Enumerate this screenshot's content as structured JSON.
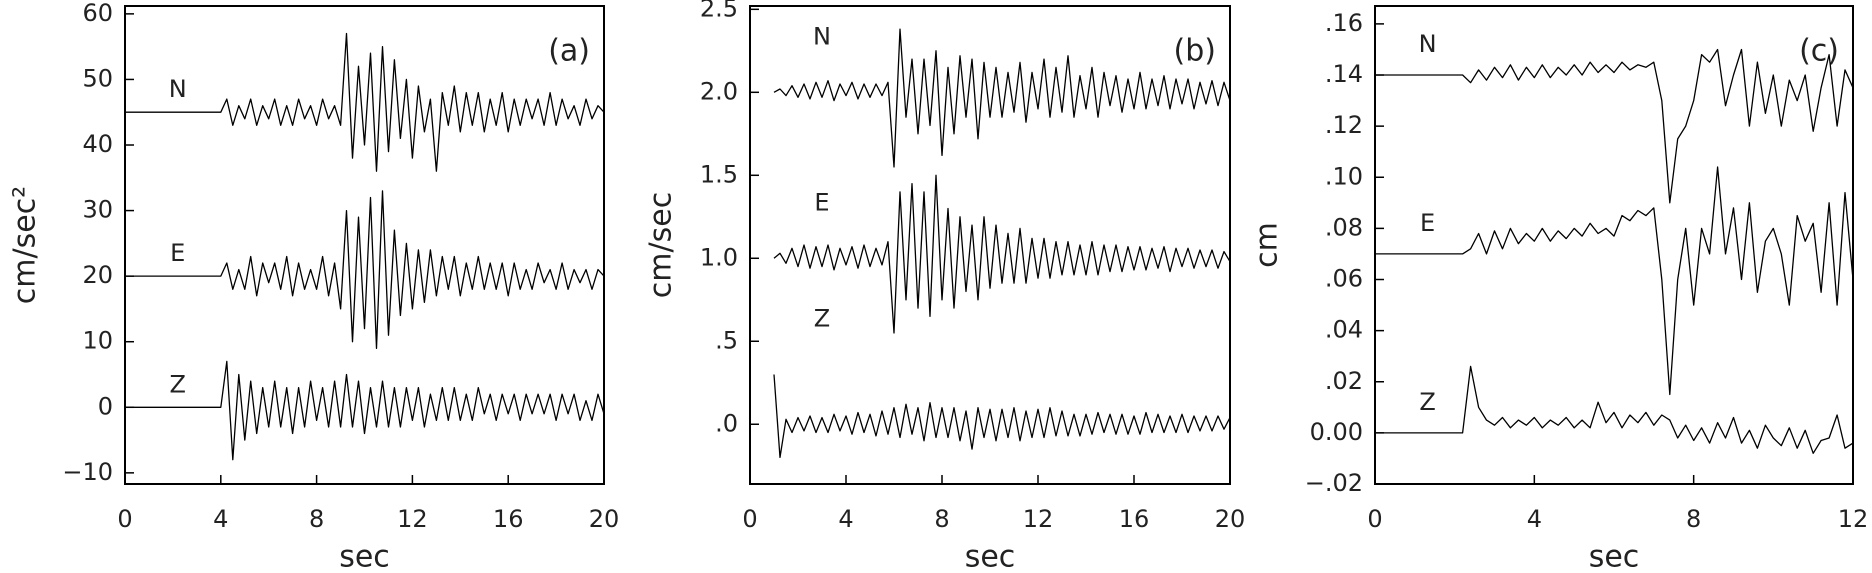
{
  "chart_data": [
    {
      "type": "line",
      "panel_label": "(a)",
      "y_label": "cm/sec²",
      "x_label": "sec",
      "xlim": [
        0,
        20
      ],
      "xticks": [
        0,
        4,
        8,
        12,
        16,
        20
      ],
      "ylim": [
        -11.7,
        61.2
      ],
      "yticks": [
        {
          "value": -10,
          "label": "−10"
        },
        0,
        10,
        20,
        30,
        40,
        50,
        60
      ],
      "x": [
        0,
        4,
        4.25,
        4.5,
        4.75,
        5,
        5.25,
        5.5,
        5.75,
        6,
        6.25,
        6.5,
        6.75,
        7,
        7.25,
        7.5,
        7.75,
        8,
        8.25,
        8.5,
        8.75,
        9,
        9.25,
        9.5,
        9.75,
        10,
        10.25,
        10.5,
        10.75,
        11,
        11.25,
        11.5,
        11.75,
        12,
        12.25,
        12.5,
        12.75,
        13,
        13.25,
        13.5,
        13.75,
        14,
        14.25,
        14.5,
        14.75,
        15,
        15.25,
        15.5,
        15.75,
        16,
        16.25,
        16.5,
        16.75,
        17,
        17.25,
        17.5,
        17.75,
        18,
        18.25,
        18.5,
        18.75,
        19,
        19.25,
        19.5,
        19.75,
        20
      ],
      "series": [
        {
          "name": "N",
          "color": "#000000",
          "values": [
            45,
            45,
            47,
            43,
            46,
            44,
            47,
            43,
            46,
            44,
            47,
            43,
            46,
            43,
            47,
            44,
            46,
            43,
            47,
            44,
            46,
            43,
            57,
            38,
            52,
            40,
            54,
            36,
            55,
            39,
            53,
            41,
            50,
            38,
            49,
            42,
            47,
            36,
            48,
            43,
            49,
            42,
            48,
            43,
            48,
            42,
            47,
            43,
            48,
            42,
            47,
            43,
            47,
            44,
            47,
            43,
            48,
            43,
            47,
            44,
            46,
            43,
            47,
            44,
            46,
            45
          ]
        },
        {
          "name": "E",
          "color": "#000000",
          "values": [
            20,
            20,
            22,
            18,
            21,
            18,
            23,
            17,
            22,
            19,
            22,
            18,
            23,
            17,
            22,
            18,
            21,
            18,
            23,
            17,
            22,
            15,
            30,
            10,
            29,
            12,
            32,
            9,
            33,
            11,
            27,
            14,
            25,
            15,
            24,
            16,
            24,
            17,
            23,
            18,
            23,
            17,
            22,
            18,
            23,
            18,
            22,
            18,
            22,
            17,
            22,
            18,
            21,
            18,
            22,
            19,
            21,
            18,
            22,
            18,
            21,
            19,
            21,
            18,
            21,
            20
          ]
        },
        {
          "name": "Z",
          "color": "#000000",
          "values": [
            0,
            0,
            7,
            -8,
            5,
            -5,
            4,
            -4,
            3,
            -3,
            4,
            -3,
            3,
            -4,
            3,
            -3,
            4,
            -2,
            3,
            -3,
            4,
            -3,
            5,
            -3,
            4,
            -4,
            3,
            -3,
            4,
            -3,
            3,
            -3,
            3,
            -2,
            3,
            -3,
            2,
            -2,
            3,
            -2,
            3,
            -2,
            2,
            -2,
            3,
            -1,
            2,
            -2,
            2,
            -1,
            2,
            -2,
            2,
            -1,
            2,
            -1,
            2,
            -2,
            2,
            -1,
            2,
            -2,
            1,
            -2,
            2,
            -1
          ]
        }
      ]
    },
    {
      "type": "line",
      "panel_label": "(b)",
      "y_label": "cm/sec",
      "x_label": "sec",
      "xlim": [
        0,
        20
      ],
      "xticks": [
        0,
        4,
        8,
        12,
        16,
        20
      ],
      "ylim": [
        -0.36,
        2.52
      ],
      "yticks": [
        {
          "value": 0,
          "label": ".0"
        },
        {
          "value": 0.5,
          "label": ".5"
        },
        {
          "value": 1,
          "label": "1.0"
        },
        1.5,
        {
          "value": 2,
          "label": "2.0"
        },
        2.5
      ],
      "x": [
        1,
        1.25,
        1.5,
        1.75,
        2,
        2.25,
        2.5,
        2.75,
        3,
        3.25,
        3.5,
        3.75,
        4,
        4.25,
        4.5,
        4.75,
        5,
        5.25,
        5.5,
        5.75,
        6,
        6.25,
        6.5,
        6.75,
        7,
        7.25,
        7.5,
        7.75,
        8,
        8.25,
        8.5,
        8.75,
        9,
        9.25,
        9.5,
        9.75,
        10,
        10.25,
        10.5,
        10.75,
        11,
        11.25,
        11.5,
        11.75,
        12,
        12.25,
        12.5,
        12.75,
        13,
        13.25,
        13.5,
        13.75,
        14,
        14.25,
        14.5,
        14.75,
        15,
        15.25,
        15.5,
        15.75,
        16,
        16.25,
        16.5,
        16.75,
        17,
        17.25,
        17.5,
        17.75,
        18,
        18.25,
        18.5,
        18.75,
        19,
        19.25,
        19.5,
        19.75,
        20
      ],
      "series": [
        {
          "name": "N",
          "color": "#000000",
          "values": [
            2.0,
            2.02,
            1.98,
            2.04,
            1.97,
            2.05,
            1.96,
            2.06,
            1.97,
            2.07,
            1.95,
            2.05,
            1.98,
            2.06,
            1.96,
            2.05,
            1.97,
            2.05,
            1.98,
            2.06,
            1.55,
            2.38,
            1.85,
            2.2,
            1.75,
            2.2,
            1.8,
            2.25,
            1.62,
            2.15,
            1.75,
            2.22,
            1.85,
            2.2,
            1.72,
            2.18,
            1.85,
            2.15,
            1.85,
            2.12,
            1.88,
            2.18,
            1.82,
            2.12,
            1.9,
            2.2,
            1.85,
            2.15,
            1.88,
            2.22,
            1.85,
            2.1,
            1.9,
            2.15,
            1.85,
            2.12,
            1.92,
            2.1,
            1.88,
            2.08,
            1.9,
            2.12,
            1.9,
            2.08,
            1.92,
            2.1,
            1.9,
            2.08,
            1.93,
            2.08,
            1.9,
            2.06,
            1.93,
            2.07,
            1.92,
            2.06,
            1.95
          ]
        },
        {
          "name": "E",
          "color": "#000000",
          "values": [
            1.0,
            1.03,
            0.97,
            1.06,
            0.95,
            1.08,
            0.94,
            1.07,
            0.95,
            1.08,
            0.93,
            1.06,
            0.96,
            1.07,
            0.94,
            1.08,
            0.95,
            1.06,
            0.96,
            1.1,
            0.55,
            1.4,
            0.75,
            1.45,
            0.7,
            1.4,
            0.65,
            1.5,
            0.75,
            1.3,
            0.7,
            1.25,
            0.8,
            1.2,
            0.75,
            1.25,
            0.82,
            1.2,
            0.85,
            1.15,
            0.85,
            1.18,
            0.85,
            1.12,
            0.88,
            1.12,
            0.88,
            1.1,
            0.9,
            1.1,
            0.9,
            1.08,
            0.9,
            1.1,
            0.9,
            1.08,
            0.92,
            1.08,
            0.92,
            1.07,
            0.93,
            1.07,
            0.93,
            1.06,
            0.94,
            1.07,
            0.92,
            1.06,
            0.95,
            1.06,
            0.94,
            1.05,
            0.95,
            1.05,
            0.94,
            1.04,
            0.98
          ]
        },
        {
          "name": "Z",
          "color": "#000000",
          "values": [
            0.3,
            -0.2,
            0.03,
            -0.05,
            0.04,
            -0.04,
            0.05,
            -0.05,
            0.04,
            -0.05,
            0.06,
            -0.04,
            0.05,
            -0.06,
            0.07,
            -0.05,
            0.06,
            -0.07,
            0.08,
            -0.06,
            0.1,
            -0.08,
            0.12,
            -0.06,
            0.1,
            -0.1,
            0.13,
            -0.08,
            0.1,
            -0.08,
            0.1,
            -0.1,
            0.08,
            -0.15,
            0.1,
            -0.08,
            0.09,
            -0.1,
            0.09,
            -0.08,
            0.1,
            -0.1,
            0.08,
            -0.08,
            0.09,
            -0.08,
            0.1,
            -0.07,
            0.08,
            -0.07,
            0.06,
            -0.07,
            0.06,
            -0.06,
            0.07,
            -0.05,
            0.06,
            -0.06,
            0.06,
            -0.06,
            0.05,
            -0.06,
            0.07,
            -0.05,
            0.06,
            -0.05,
            0.05,
            -0.05,
            0.06,
            -0.05,
            0.05,
            -0.04,
            0.05,
            -0.04,
            0.05,
            -0.03,
            0.04
          ]
        }
      ]
    },
    {
      "type": "line",
      "panel_label": "(c)",
      "y_label": "cm",
      "x_label": "sec",
      "xlim": [
        0,
        12
      ],
      "xticks": [
        0,
        4,
        8,
        12
      ],
      "ylim": [
        -0.02,
        0.167
      ],
      "yticks": [
        {
          "value": -0.02,
          "label": "−.02"
        },
        {
          "value": 0,
          "label": "0.00"
        },
        {
          "value": 0.02,
          "label": ".02"
        },
        {
          "value": 0.04,
          "label": ".04"
        },
        {
          "value": 0.06,
          "label": ".06"
        },
        {
          "value": 0.08,
          "label": ".08"
        },
        {
          "value": 0.1,
          "label": ".10"
        },
        {
          "value": 0.12,
          "label": ".12"
        },
        {
          "value": 0.14,
          "label": ".14"
        },
        {
          "value": 0.16,
          "label": ".16"
        }
      ],
      "x": [
        0,
        2.2,
        2.4,
        2.6,
        2.8,
        3,
        3.2,
        3.4,
        3.6,
        3.8,
        4,
        4.2,
        4.4,
        4.6,
        4.8,
        5,
        5.2,
        5.4,
        5.6,
        5.8,
        6,
        6.2,
        6.4,
        6.6,
        6.8,
        7,
        7.2,
        7.4,
        7.6,
        7.8,
        8,
        8.2,
        8.4,
        8.6,
        8.8,
        9,
        9.2,
        9.4,
        9.6,
        9.8,
        10,
        10.2,
        10.4,
        10.6,
        10.8,
        11,
        11.2,
        11.4,
        11.6,
        11.8,
        12
      ],
      "series": [
        {
          "name": "N",
          "color": "#000000",
          "values": [
            0.14,
            0.14,
            0.137,
            0.142,
            0.138,
            0.143,
            0.139,
            0.144,
            0.138,
            0.143,
            0.139,
            0.144,
            0.139,
            0.143,
            0.14,
            0.144,
            0.14,
            0.145,
            0.141,
            0.144,
            0.141,
            0.145,
            0.142,
            0.144,
            0.143,
            0.145,
            0.13,
            0.09,
            0.115,
            0.12,
            0.13,
            0.148,
            0.145,
            0.15,
            0.128,
            0.14,
            0.15,
            0.12,
            0.145,
            0.125,
            0.14,
            0.12,
            0.138,
            0.13,
            0.14,
            0.118,
            0.135,
            0.148,
            0.12,
            0.142,
            0.135
          ]
        },
        {
          "name": "E",
          "color": "#000000",
          "values": [
            0.07,
            0.07,
            0.072,
            0.078,
            0.07,
            0.079,
            0.072,
            0.08,
            0.074,
            0.078,
            0.075,
            0.08,
            0.075,
            0.079,
            0.076,
            0.08,
            0.077,
            0.082,
            0.078,
            0.08,
            0.077,
            0.085,
            0.083,
            0.087,
            0.085,
            0.088,
            0.06,
            0.015,
            0.06,
            0.08,
            0.05,
            0.08,
            0.07,
            0.104,
            0.07,
            0.088,
            0.06,
            0.09,
            0.055,
            0.075,
            0.08,
            0.07,
            0.05,
            0.085,
            0.075,
            0.082,
            0.055,
            0.09,
            0.05,
            0.094,
            0.06
          ]
        },
        {
          "name": "Z",
          "color": "#000000",
          "values": [
            0,
            0,
            0.026,
            0.01,
            0.005,
            0.003,
            0.006,
            0.002,
            0.005,
            0.003,
            0.006,
            0.002,
            0.005,
            0.003,
            0.006,
            0.002,
            0.005,
            0.002,
            0.012,
            0.004,
            0.008,
            0.002,
            0.007,
            0.004,
            0.008,
            0.003,
            0.007,
            0.005,
            -0.002,
            0.003,
            -0.003,
            0.002,
            -0.004,
            0.004,
            -0.002,
            0.006,
            -0.004,
            0.001,
            -0.006,
            0.003,
            -0.002,
            -0.005,
            0.002,
            -0.006,
            0.001,
            -0.008,
            -0.003,
            -0.002,
            0.007,
            -0.006,
            -0.004
          ]
        }
      ]
    }
  ]
}
